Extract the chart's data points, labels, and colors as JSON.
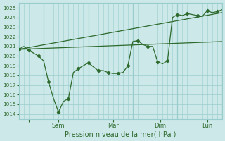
{
  "xlabel": "Pression niveau de la mer( hPa )",
  "ylim": [
    1013.5,
    1025.5
  ],
  "yticks": [
    1014,
    1015,
    1016,
    1017,
    1018,
    1019,
    1020,
    1021,
    1022,
    1023,
    1024,
    1025
  ],
  "xtick_positions": [
    2,
    8,
    19,
    28.5,
    38
  ],
  "xtick_labels": [
    "",
    "Sam",
    "Mar",
    "Dim",
    "Lun"
  ],
  "vline_positions": [
    5,
    14,
    23,
    32,
    41
  ],
  "bg_color": "#cce8e8",
  "grid_color": "#99cccc",
  "line_color": "#2d6a2d",
  "line1_x": [
    0,
    1,
    2,
    3,
    4,
    5,
    6,
    7,
    8,
    9,
    10,
    11,
    12,
    13,
    14,
    15,
    16,
    17,
    18,
    19,
    20,
    21,
    22,
    23,
    24,
    25,
    26,
    27,
    28,
    29,
    30,
    31,
    32,
    33,
    34,
    35,
    36,
    37,
    38,
    39,
    40,
    41
  ],
  "line1_y": [
    1020.7,
    1021.0,
    1020.6,
    1020.3,
    1020.0,
    1019.5,
    1017.3,
    1015.6,
    1014.2,
    1015.3,
    1015.6,
    1018.3,
    1018.7,
    1019.0,
    1019.3,
    1018.9,
    1018.5,
    1018.5,
    1018.3,
    1018.2,
    1018.2,
    1018.3,
    1019.0,
    1021.5,
    1021.6,
    1021.2,
    1021.0,
    1021.0,
    1019.4,
    1019.2,
    1019.5,
    1024.0,
    1024.3,
    1024.2,
    1024.4,
    1024.3,
    1024.2,
    1024.1,
    1024.7,
    1024.5,
    1024.6,
    1024.8
  ],
  "line2_x": [
    0,
    41
  ],
  "line2_y": [
    1020.7,
    1021.5
  ],
  "line3_x": [
    0,
    41
  ],
  "line3_y": [
    1020.7,
    1024.5
  ],
  "xlim": [
    0,
    41
  ],
  "n_points": 42
}
